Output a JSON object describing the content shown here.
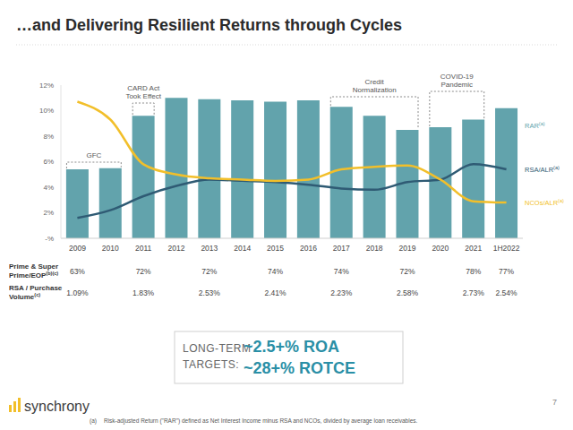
{
  "title": "…and Delivering Resilient Returns through Cycles",
  "chart_data": {
    "type": "bar",
    "categories": [
      "2009",
      "2010",
      "2011",
      "2012",
      "2013",
      "2014",
      "2015",
      "2016",
      "2017",
      "2018",
      "2019",
      "2020",
      "2021",
      "1H2022"
    ],
    "series": [
      {
        "name": "RAR",
        "footnote_ref": "(a)",
        "type": "bar",
        "color": "#62a3ac",
        "values": [
          5.4,
          5.5,
          9.6,
          11.0,
          10.9,
          10.8,
          10.7,
          10.8,
          10.3,
          9.6,
          8.5,
          8.7,
          9.3,
          10.2
        ]
      },
      {
        "name": "RSA/ALR",
        "footnote_ref": "(a)",
        "type": "line",
        "color": "#2f5b74",
        "values": [
          1.6,
          2.2,
          3.3,
          4.1,
          4.6,
          4.5,
          4.4,
          4.2,
          3.9,
          3.8,
          4.4,
          4.6,
          5.8,
          5.4
        ]
      },
      {
        "name": "NCOs/ALR",
        "footnote_ref": "(a)",
        "type": "line",
        "color": "#f2bf2a",
        "values": [
          10.7,
          9.3,
          5.8,
          5.0,
          4.7,
          4.6,
          4.5,
          4.6,
          5.4,
          5.6,
          5.7,
          4.6,
          2.9,
          2.8
        ]
      }
    ],
    "ylim": [
      0,
      12
    ],
    "yticks": [
      {
        "value": 0,
        "label": "-%"
      },
      {
        "value": 2,
        "label": "2%"
      },
      {
        "value": 4,
        "label": "4%"
      },
      {
        "value": 6,
        "label": "6%"
      },
      {
        "value": 8,
        "label": "8%"
      },
      {
        "value": 10,
        "label": "10%"
      },
      {
        "value": 12,
        "label": "12%"
      }
    ],
    "grid": false,
    "annotations": [
      {
        "text": [
          "GFC"
        ],
        "from": "2009",
        "to": "2010"
      },
      {
        "text": [
          "CARD Act",
          "Took Effect"
        ],
        "from": "2011",
        "to": "2011"
      },
      {
        "text": [
          "Credit",
          "Normalization"
        ],
        "from": "2017",
        "to": "2019"
      },
      {
        "text": [
          "COVID-19",
          "Pandemic"
        ],
        "from": "2020",
        "to": "2021"
      }
    ]
  },
  "table": {
    "rows": [
      {
        "label": [
          "Prime & Super",
          "Prime/EOP"
        ],
        "footnote_ref": "(b)(c)",
        "cells": [
          "63%",
          null,
          "72%",
          null,
          "72%",
          null,
          "74%",
          null,
          "74%",
          null,
          "72%",
          null,
          "78%",
          "77%"
        ]
      },
      {
        "label": [
          "RSA / Purchase",
          "Volume"
        ],
        "footnote_ref": "(c)",
        "cells": [
          "1.09%",
          null,
          "1.83%",
          null,
          "2.53%",
          null,
          "2.41%",
          null,
          "2.23%",
          null,
          "2.58%",
          null,
          "2.73%",
          "2.54%"
        ]
      }
    ]
  },
  "targets": {
    "label": [
      "LONG-TERM",
      "TARGETS:"
    ],
    "items": [
      "~2.5+% ROA",
      "~28+% ROTCE"
    ]
  },
  "logo": "synchrony",
  "page": "7",
  "footnote": {
    "mark": "(a)",
    "text": "Risk-adjusted Return (\"RAR\") defined as Net Interest Income minus RSA and NCOs, divided by average loan receivables."
  }
}
